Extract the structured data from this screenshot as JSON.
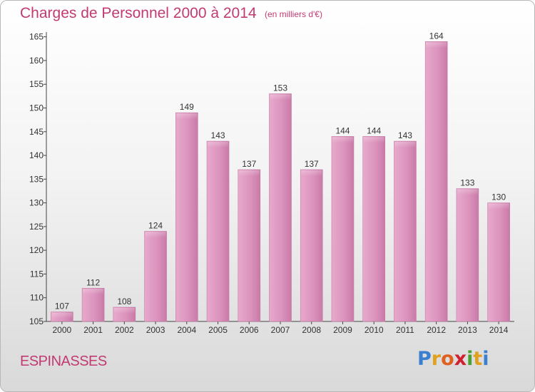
{
  "title": "Charges de Personnel 2000 à 2014",
  "subtitle": "(en milliers d'€)",
  "commune": "ESPINASSES",
  "brand": {
    "letters": [
      "P",
      "r",
      "o",
      "x",
      "i",
      "t",
      "i"
    ],
    "colors": [
      "#3a7fd0",
      "#e0a020",
      "#e06020",
      "#d02030",
      "#4aa030",
      "#e0a020",
      "#3a7fd0"
    ]
  },
  "colors": {
    "bar": "#d98ab6",
    "bar_light": "#e9b3d1",
    "text_accent": "#c23a72"
  },
  "chart_data": {
    "type": "bar",
    "categories": [
      "2000",
      "2001",
      "2002",
      "2003",
      "2004",
      "2005",
      "2006",
      "2007",
      "2008",
      "2009",
      "2010",
      "2011",
      "2012",
      "2013",
      "2014"
    ],
    "values": [
      107,
      112,
      108,
      124,
      149,
      143,
      137,
      153,
      137,
      144,
      144,
      143,
      164,
      133,
      130
    ],
    "ylim": [
      105,
      166
    ],
    "yticks": [
      105,
      110,
      115,
      120,
      125,
      130,
      135,
      140,
      145,
      150,
      155,
      160,
      165
    ],
    "grid": false
  }
}
